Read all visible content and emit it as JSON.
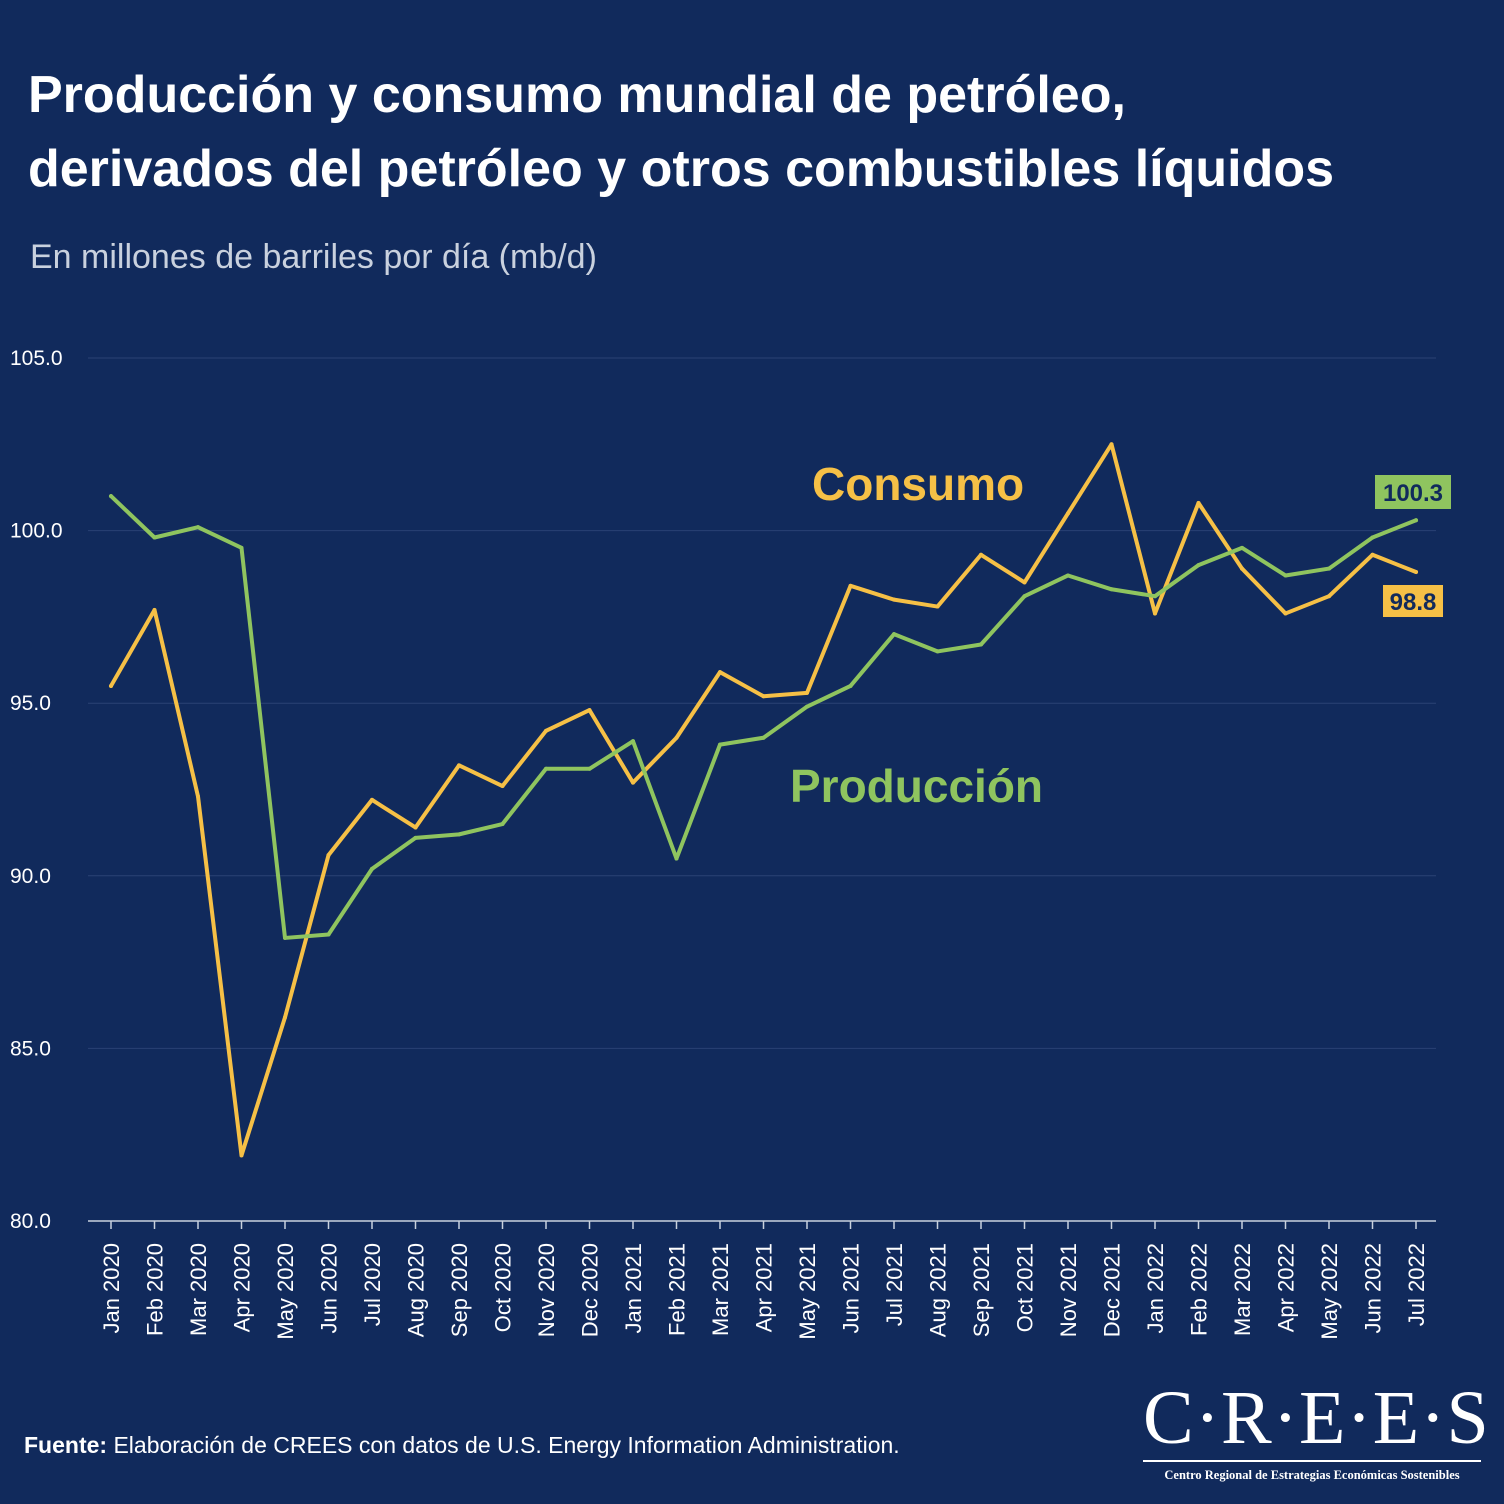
{
  "header": {
    "title_line1": "Producción y consumo mundial de petróleo,",
    "title_line2": "derivados del petróleo y otros combustibles líquidos",
    "subtitle": "En millones de barriles por día (mb/d)"
  },
  "footer": {
    "source_label": "Fuente:",
    "source_text": " Elaboración de CREES con datos de U.S. Energy Information Administration."
  },
  "logo": {
    "mark": "C·R·E·E·S",
    "tagline": "Centro Regional de Estrategias Económicas Sostenibles"
  },
  "colors": {
    "background": "#112a5c",
    "consumo": "#f6c046",
    "produccion": "#8fc45f",
    "grid": "#2a4274",
    "axis": "#c9d1de"
  },
  "chart_data": {
    "type": "line",
    "title": "Producción y consumo mundial de petróleo, derivados del petróleo y otros combustibles líquidos",
    "ylabel": "En millones de barriles por día (mb/d)",
    "xlabel": "",
    "ylim": [
      80,
      105
    ],
    "yticks": [
      "80.0",
      "85.0",
      "90.0",
      "95.0",
      "100.0",
      "105.0"
    ],
    "grid": true,
    "categories": [
      "Jan 2020",
      "Feb 2020",
      "Mar 2020",
      "Apr 2020",
      "May 2020",
      "Jun 2020",
      "Jul 2020",
      "Aug 2020",
      "Sep 2020",
      "Oct 2020",
      "Nov 2020",
      "Dec 2020",
      "Jan 2021",
      "Feb 2021",
      "Mar 2021",
      "Apr 2021",
      "May 2021",
      "Jun 2021",
      "Jul 2021",
      "Aug 2021",
      "Sep 2021",
      "Oct 2021",
      "Nov 2021",
      "Dec 2021",
      "Jan 2022",
      "Feb 2022",
      "Mar 2022",
      "Apr 2022",
      "May 2022",
      "Jun 2022",
      "Jul 2022"
    ],
    "series": [
      {
        "name": "Consumo",
        "values": [
          95.5,
          97.7,
          92.3,
          81.9,
          85.9,
          90.6,
          92.2,
          91.4,
          93.2,
          92.6,
          94.2,
          94.8,
          92.7,
          94.0,
          95.9,
          95.2,
          95.3,
          98.4,
          98.0,
          97.8,
          99.3,
          98.5,
          100.5,
          102.5,
          97.6,
          100.8,
          98.9,
          97.6,
          98.1,
          99.3,
          98.8
        ],
        "label": "Consumo",
        "end_label": "98.8"
      },
      {
        "name": "Producción",
        "values": [
          101.0,
          99.8,
          100.1,
          99.5,
          88.2,
          88.3,
          90.2,
          91.1,
          91.2,
          91.5,
          93.1,
          93.1,
          93.9,
          90.5,
          93.8,
          94.0,
          94.9,
          95.5,
          97.0,
          96.5,
          96.7,
          98.1,
          98.7,
          98.3,
          98.1,
          99.0,
          99.5,
          98.7,
          98.9,
          99.8,
          100.3
        ],
        "label": "Producción",
        "end_label": "100.3"
      }
    ]
  }
}
